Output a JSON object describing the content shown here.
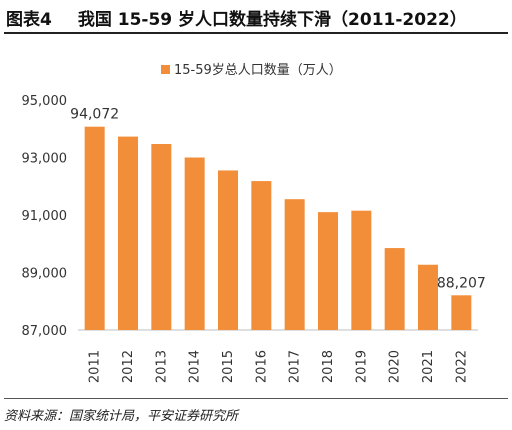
{
  "header": {
    "figure_label": "图表4",
    "title": "我国 15-59 岁人口数量持续下滑（2011-2022）"
  },
  "source": "资料来源：国家统计局，平安证券研究所",
  "colors": {
    "bar": "#F28E3A",
    "axis": "#BFBFBF",
    "text": "#333333"
  },
  "chart_data": {
    "type": "bar",
    "legend": "15-59岁总人口数量（万人）",
    "legend_position": "top-center",
    "categories": [
      "2011",
      "2012",
      "2013",
      "2014",
      "2015",
      "2016",
      "2017",
      "2018",
      "2019",
      "2020",
      "2021",
      "2022"
    ],
    "values": [
      94072,
      93727,
      93470,
      93000,
      92550,
      92180,
      91550,
      91100,
      91150,
      89850,
      89270,
      88207
    ],
    "data_labels": [
      {
        "index": 0,
        "text": "94,072"
      },
      {
        "index": 11,
        "text": "88,207"
      }
    ],
    "ylim": [
      87000,
      95000
    ],
    "yticks": [
      87000,
      89000,
      91000,
      93000,
      95000
    ],
    "ytick_labels": [
      "87,000",
      "89,000",
      "91,000",
      "93,000",
      "95,000"
    ],
    "grid": false
  }
}
